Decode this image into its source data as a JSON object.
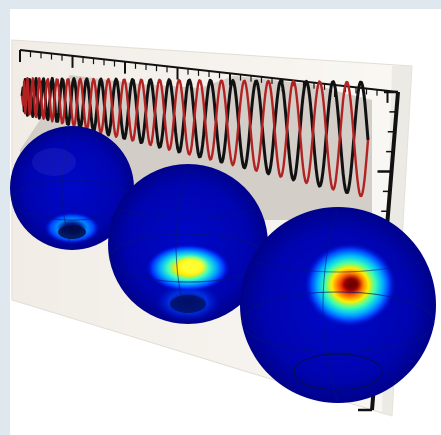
{
  "scene": {
    "background_color": "#dfe7ef",
    "panel_color": "#ffffff",
    "plot_card_color": "#f6f3ee",
    "plot_fill_color": "#cfc9c4",
    "axis_color": "#111111",
    "series": [
      {
        "color": "#111111"
      },
      {
        "color": "#b32222"
      }
    ],
    "spheres": [
      {
        "peak": "blue"
      },
      {
        "peak": "yellow"
      },
      {
        "peak": "red"
      }
    ]
  }
}
